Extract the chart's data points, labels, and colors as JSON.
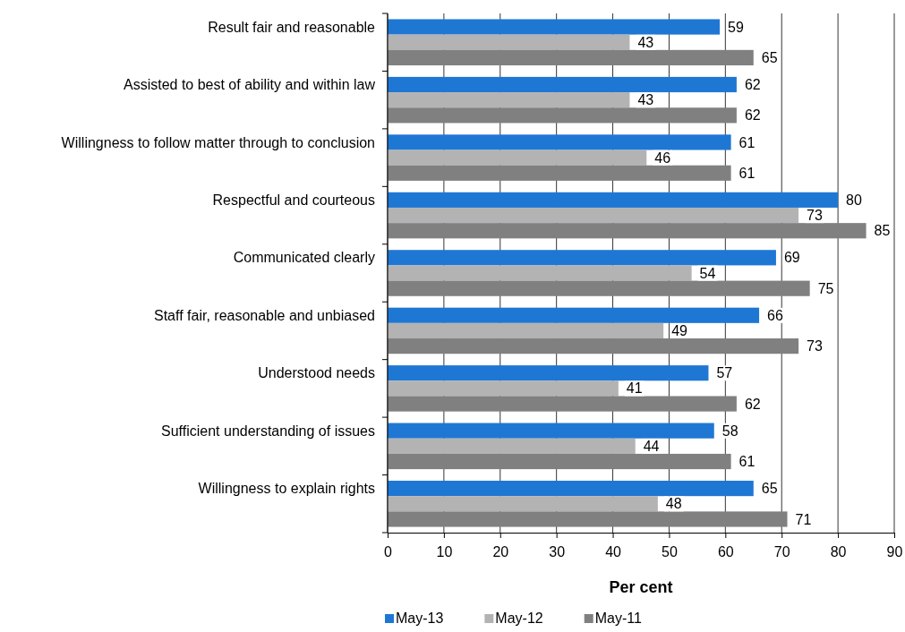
{
  "chart_data": {
    "type": "bar",
    "orientation": "horizontal",
    "xlabel": "Per cent",
    "categories": [
      "Result fair and reasonable",
      "Assisted to best of ability and within law",
      "Willingness to follow matter through to conclusion",
      "Respectful and courteous",
      "Communicated clearly",
      "Staff fair, reasonable and unbiased",
      "Understood needs",
      "Sufficient understanding of issues",
      "Willingness to explain rights"
    ],
    "series": [
      {
        "name": "May-13",
        "color": "#1f77d4",
        "values": [
          59,
          62,
          61,
          80,
          69,
          66,
          57,
          58,
          65
        ]
      },
      {
        "name": "May-12",
        "color": "#b3b3b3",
        "values": [
          43,
          43,
          46,
          73,
          54,
          49,
          41,
          44,
          48
        ]
      },
      {
        "name": "May-11",
        "color": "#808080",
        "values": [
          65,
          62,
          61,
          85,
          75,
          73,
          62,
          61,
          71
        ]
      }
    ],
    "xlim": [
      0,
      90
    ],
    "xticks": [
      0,
      10,
      20,
      30,
      40,
      50,
      60,
      70,
      80,
      90
    ],
    "grid": "x",
    "legend": "bottom",
    "data_labels": true
  }
}
